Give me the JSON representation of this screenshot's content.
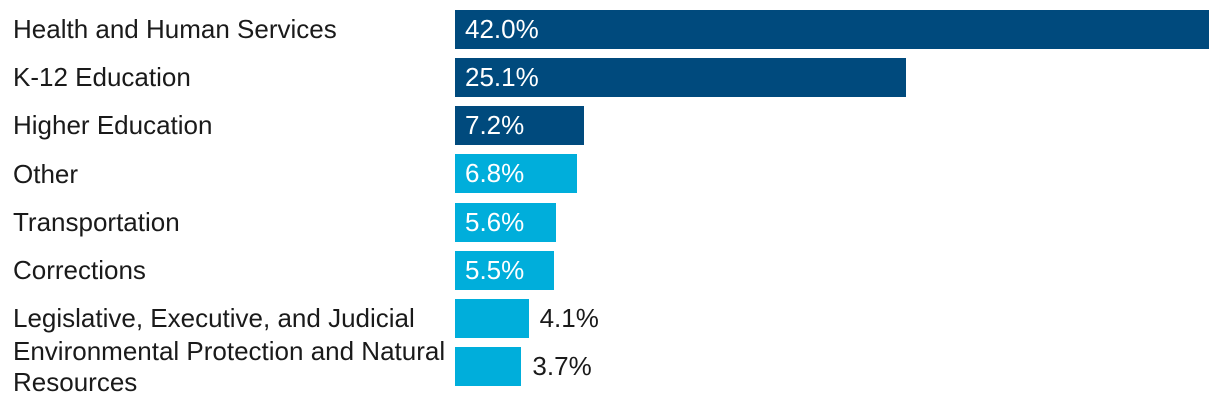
{
  "chart_data": {
    "type": "bar",
    "orientation": "horizontal",
    "title": "",
    "xlabel": "",
    "ylabel": "",
    "axis_visible": false,
    "grid": false,
    "legend": "none",
    "xlim": [
      0,
      42.7
    ],
    "categories": [
      "Health and Human Services",
      "K-12 Education",
      "Higher Education",
      "Other",
      "Transportation",
      "Corrections",
      "Legislative, Executive, and Judicial",
      "Environmental Protection and Natural Resources"
    ],
    "values": [
      42.0,
      25.1,
      7.2,
      6.8,
      5.6,
      5.5,
      4.1,
      3.7
    ],
    "value_labels": [
      "42.0%",
      "25.1%",
      "7.2%",
      "6.8%",
      "5.6%",
      "5.5%",
      "4.1%",
      "3.7%"
    ],
    "bar_color_keys": [
      "dark_blue",
      "dark_blue",
      "dark_blue",
      "cyan",
      "cyan",
      "cyan",
      "cyan",
      "cyan"
    ],
    "value_label_placement": [
      "inside",
      "inside",
      "inside",
      "inside",
      "inside",
      "inside",
      "outside",
      "outside"
    ],
    "colors": {
      "dark_blue": "#004A7D",
      "cyan": "#00AEDB",
      "category_text": "#1A1A1A",
      "value_text_inside": "#FFFFFF",
      "value_text_outside": "#1A1A1A",
      "background": "#FFFFFF"
    }
  }
}
